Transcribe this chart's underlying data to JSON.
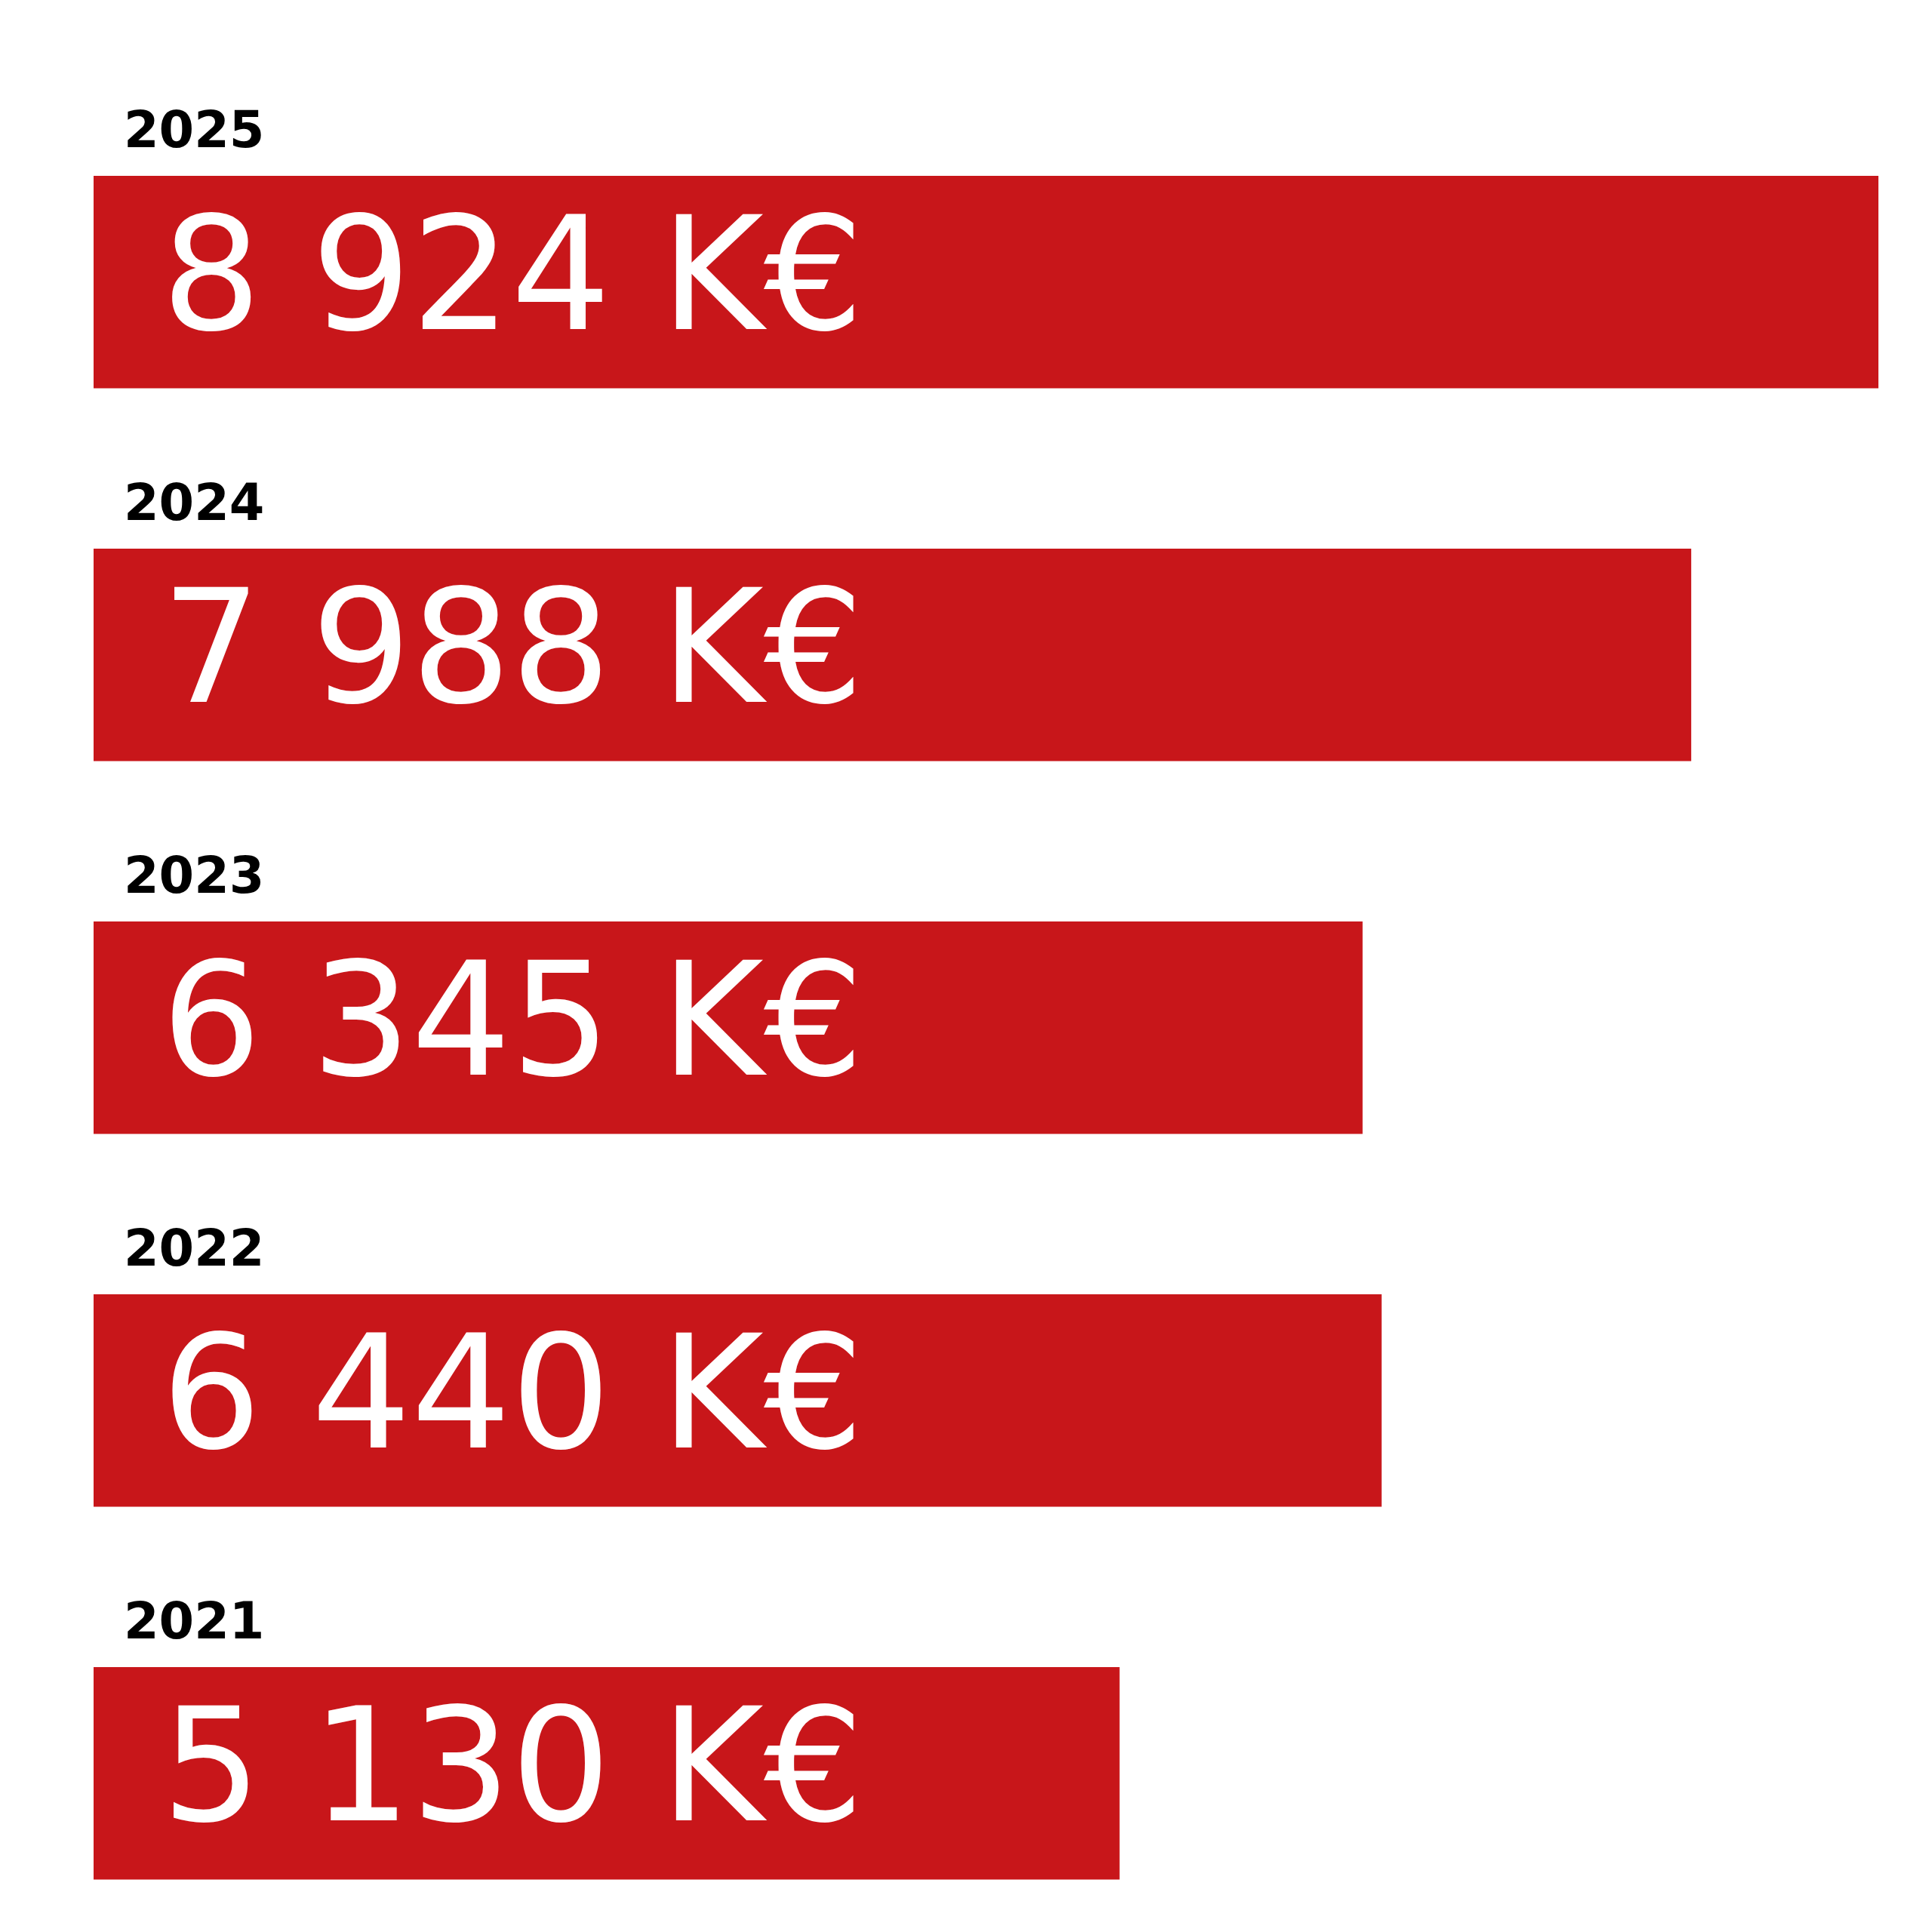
{
  "chart_data": {
    "type": "bar",
    "orientation": "horizontal",
    "categories": [
      "2025",
      "2024",
      "2023",
      "2022",
      "2021"
    ],
    "values": [
      8924,
      7988,
      6345,
      6440,
      5130
    ],
    "value_labels": [
      "8 924 K€",
      "7 988 K€",
      "6 345 K€",
      "6 440 K€",
      "5 130 K€"
    ],
    "color": "#c8161a"
  }
}
